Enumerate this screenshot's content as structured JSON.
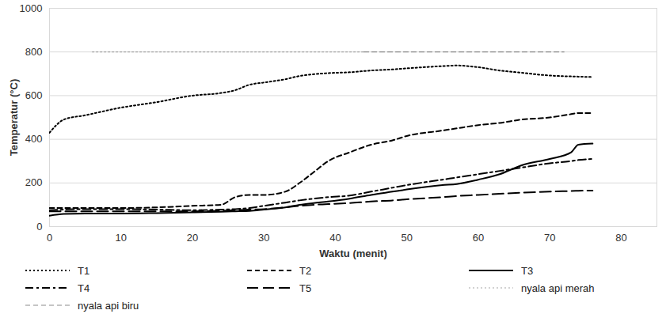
{
  "chart_data": {
    "type": "line",
    "x_label": "Waktu (menit)",
    "y_label": "Temperatur (°C)",
    "x": [
      0,
      2,
      5,
      10,
      15,
      20,
      24,
      26,
      28,
      30,
      33,
      35,
      37,
      39,
      42,
      45,
      48,
      50,
      55,
      57,
      60,
      63,
      66,
      70,
      73,
      74,
      76
    ],
    "xlim": [
      0,
      85
    ],
    "xticks": [
      0,
      10,
      20,
      30,
      40,
      50,
      60,
      70,
      80
    ],
    "ylim": [
      0,
      1000
    ],
    "yticks": [
      0,
      200,
      400,
      600,
      800,
      1000
    ],
    "grid": true,
    "legend": "bottom",
    "series": [
      {
        "name": "T1",
        "color": "#000000",
        "line_style": "dotted",
        "values": [
          430,
          490,
          510,
          545,
          570,
          600,
          612,
          625,
          650,
          660,
          675,
          690,
          698,
          703,
          707,
          715,
          720,
          725,
          735,
          738,
          730,
          715,
          705,
          692,
          688,
          687,
          685
        ]
      },
      {
        "name": "T2",
        "color": "#000000",
        "line_style": "dashed",
        "values": [
          85,
          85,
          85,
          85,
          88,
          95,
          100,
          135,
          145,
          145,
          160,
          200,
          250,
          300,
          340,
          375,
          395,
          415,
          440,
          450,
          465,
          475,
          490,
          500,
          515,
          520,
          520
        ]
      },
      {
        "name": "T3",
        "color": "#000000",
        "line_style": "solid",
        "values": [
          50,
          58,
          60,
          60,
          62,
          65,
          68,
          70,
          72,
          78,
          88,
          100,
          108,
          115,
          128,
          145,
          160,
          170,
          190,
          195,
          215,
          240,
          280,
          310,
          340,
          375,
          380
        ]
      },
      {
        "name": "T4",
        "color": "#000000",
        "line_style": "dashdot",
        "values": [
          75,
          78,
          80,
          80,
          78,
          75,
          78,
          80,
          85,
          95,
          110,
          120,
          128,
          135,
          142,
          160,
          178,
          190,
          215,
          225,
          240,
          255,
          270,
          290,
          300,
          305,
          310
        ]
      },
      {
        "name": "T5",
        "color": "#000000",
        "line_style": "longdash",
        "values": [
          70,
          70,
          70,
          70,
          70,
          70,
          72,
          75,
          78,
          80,
          88,
          95,
          100,
          103,
          108,
          115,
          120,
          125,
          135,
          140,
          145,
          150,
          155,
          160,
          163,
          164,
          165
        ]
      },
      {
        "name": "nyala api merah",
        "color": "#a6a6a6",
        "line_style": "dotted",
        "x": [
          6,
          44
        ],
        "values": [
          800,
          800
        ]
      },
      {
        "name": "nyala api biru",
        "color": "#8c8c8c",
        "line_style": "dashed",
        "x": [
          44,
          72
        ],
        "values": [
          800,
          800
        ]
      }
    ]
  }
}
